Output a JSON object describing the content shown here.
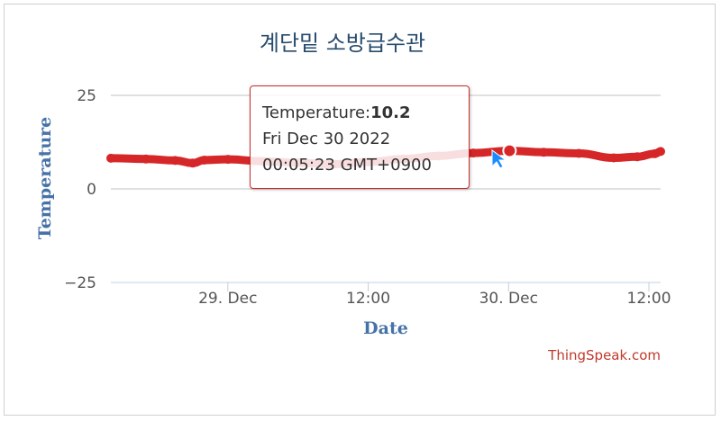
{
  "chart_data": {
    "type": "line",
    "title": "계단밑 소방급수관",
    "xlabel": "Date",
    "ylabel": "Temperature",
    "ylim": [
      -25,
      25
    ],
    "yticks": [
      "25",
      "0",
      "−25"
    ],
    "yticks_values": [
      25,
      0,
      -25
    ],
    "xticks": [
      "29. Dec",
      "12:00",
      "30. Dec",
      "12:00"
    ],
    "xticks_values": [
      "2022-12-29T00:00",
      "2022-12-29T12:00",
      "2022-12-30T00:00",
      "2022-12-30T12:00"
    ],
    "xlim": [
      "2022-12-28T14:00",
      "2022-12-30T13:00"
    ],
    "grid": true,
    "series": [
      {
        "color": "#d62728",
        "points": [
          [
            "2022-12-28T14:00",
            8.2
          ],
          [
            "2022-12-28T17:00",
            8.0
          ],
          [
            "2022-12-28T19:30",
            7.6
          ],
          [
            "2022-12-28T21:00",
            6.9
          ],
          [
            "2022-12-28T22:00",
            7.7
          ],
          [
            "2022-12-29T00:00",
            7.9
          ],
          [
            "2022-12-29T03:00",
            7.4
          ],
          [
            "2022-12-29T06:00",
            7.0
          ],
          [
            "2022-12-29T09:00",
            6.6
          ],
          [
            "2022-12-29T12:00",
            7.2
          ],
          [
            "2022-12-29T15:00",
            8.0
          ],
          [
            "2022-12-29T18:00",
            8.8
          ],
          [
            "2022-12-29T21:00",
            9.6
          ],
          [
            "2022-12-30T00:05",
            10.2
          ],
          [
            "2022-12-30T03:00",
            9.8
          ],
          [
            "2022-12-30T06:00",
            9.5
          ],
          [
            "2022-12-30T09:00",
            8.3
          ],
          [
            "2022-12-30T11:00",
            8.6
          ],
          [
            "2022-12-30T12:30",
            9.4
          ],
          [
            "2022-12-30T13:00",
            10.0
          ]
        ]
      }
    ]
  },
  "tooltip": {
    "label": "Temperature:",
    "value": "10.2",
    "date": "Fri Dec 30 2022",
    "time": "00:05:23 GMT+0900"
  },
  "credits": "ThingSpeak.com",
  "colors": {
    "series": "#d62728",
    "title": "#274b6d",
    "axis_title": "#4572a7",
    "grid": "#c0c0c0"
  }
}
